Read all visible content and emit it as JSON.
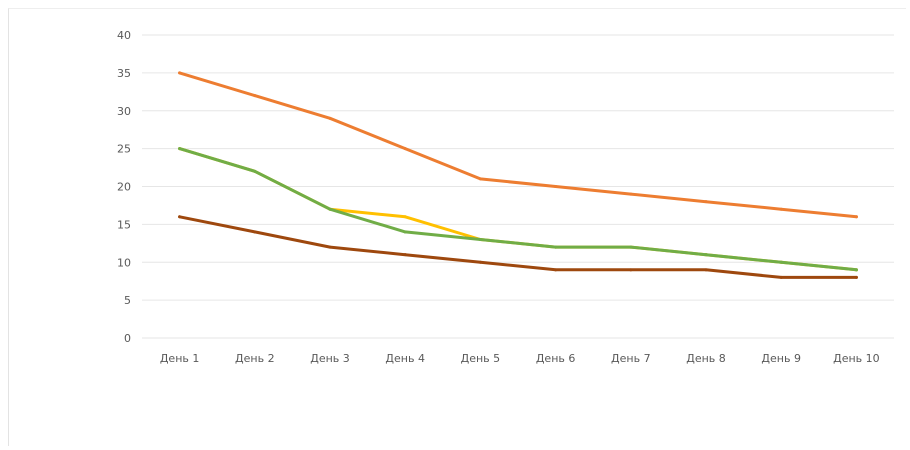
{
  "chart_data": {
    "type": "line",
    "title": "",
    "xlabel": "",
    "ylabel": "",
    "categories": [
      "День 1",
      "День 2",
      "День 3",
      "День 4",
      "День 5",
      "День 6",
      "День 7",
      "День 8",
      "День 9",
      "День 10"
    ],
    "ylim": [
      0,
      40
    ],
    "y_ticks": [
      "0",
      "5",
      "10",
      "15",
      "20",
      "25",
      "30",
      "35",
      "40"
    ],
    "grid": true,
    "legend": "none",
    "series": [
      {
        "color": "#ED7D31",
        "values": [
          35,
          32,
          29,
          25,
          21,
          20,
          19,
          18,
          17,
          16
        ]
      },
      {
        "color": "#FFC000",
        "values": [
          25,
          22,
          17,
          16,
          13,
          12,
          12,
          11,
          10,
          9
        ]
      },
      {
        "color": "#70AD47",
        "values": [
          25,
          22,
          17,
          14,
          13,
          12,
          12,
          11,
          10,
          9
        ]
      },
      {
        "color": "#9E480E",
        "values": [
          16,
          14,
          12,
          11,
          10,
          9,
          9,
          9,
          8,
          8
        ]
      }
    ]
  }
}
